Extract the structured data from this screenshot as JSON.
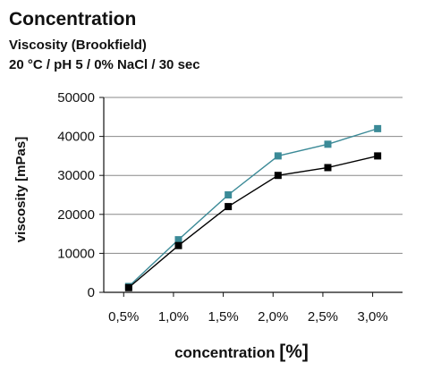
{
  "chart_data": {
    "type": "line",
    "title": "Concentration",
    "subtitle_lines": [
      "Viscosity (Brookfield)",
      "20 °C / pH 5 / 0% NaCl / 30 sec"
    ],
    "xlabel": "concentration ",
    "xlabel_unit": "[%]",
    "ylabel": "viscosity  [mPas]",
    "categories": [
      "0,5%",
      "1,0%",
      "1,5%",
      "2,0%",
      "2,5%",
      "3,0%"
    ],
    "x": [
      0.5,
      1.0,
      1.5,
      2.0,
      2.5,
      3.0
    ],
    "xlim": [
      0.3,
      3.3
    ],
    "ylim": [
      0,
      50000
    ],
    "yticks": [
      0,
      10000,
      20000,
      30000,
      40000,
      50000
    ],
    "grid": "horizontal",
    "legend": "none",
    "series": [
      {
        "color": "#3b8a97",
        "marker": "square",
        "x": [
          0.55,
          1.05,
          1.55,
          2.05,
          2.55,
          3.05
        ],
        "values": [
          1500,
          13500,
          25000,
          35000,
          38000,
          42000
        ]
      },
      {
        "color": "#000000",
        "marker": "square",
        "x": [
          0.55,
          1.05,
          1.55,
          2.05,
          2.55,
          3.05
        ],
        "values": [
          1200,
          12000,
          22000,
          30000,
          32000,
          35000
        ]
      }
    ]
  }
}
